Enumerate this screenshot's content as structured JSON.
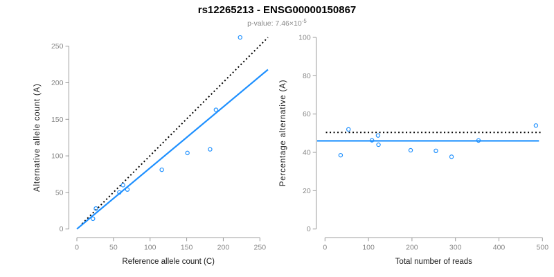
{
  "header": {
    "title": "rs12265213 - ENSG00000150867",
    "pvalue_label": "p-value: 7.46×10",
    "pvalue_exponent": "-5"
  },
  "colors": {
    "point_blue": "#1E90FF",
    "line_blue": "#1E90FF",
    "line_black": "#000000",
    "axis_line": "#9a9a9a",
    "tick_text": "#878787",
    "axis_title_text": "#1a1a1a",
    "title_text": "#000000",
    "subtitle_text": "#8a8a8a",
    "background": "#ffffff"
  },
  "chart_data": [
    {
      "panel": "allele-counts-scatter",
      "type": "scatter",
      "xlabel": "Reference allele count (C)",
      "ylabel": "Alternative allele count (A)",
      "xlim": [
        0,
        250
      ],
      "ylim": [
        0,
        250
      ],
      "xticks": [
        0,
        50,
        100,
        150,
        200,
        250
      ],
      "yticks": [
        0,
        50,
        100,
        150,
        200,
        250
      ],
      "grid": false,
      "legend": "none",
      "marker": "open-circle",
      "points": [
        [
          22,
          14
        ],
        [
          26,
          28
        ],
        [
          58,
          50
        ],
        [
          63,
          60
        ],
        [
          69,
          54
        ],
        [
          116,
          81
        ],
        [
          151,
          104
        ],
        [
          182,
          109
        ],
        [
          190,
          163
        ],
        [
          223,
          262
        ]
      ],
      "lines": [
        {
          "name": "expected-50-50-line",
          "style": "dotted",
          "color": "#000000",
          "from": [
            7,
            7
          ],
          "to": [
            261,
            262
          ]
        },
        {
          "name": "fitted-ratio-line",
          "style": "solid",
          "color": "#1E90FF",
          "from": [
            0,
            0
          ],
          "to": [
            261,
            218
          ]
        }
      ]
    },
    {
      "panel": "percentage-vs-coverage-scatter",
      "type": "scatter",
      "xlabel": "Total number of reads",
      "ylabel": "Percentage alternative (A)",
      "xlim": [
        0,
        500
      ],
      "ylim": [
        0,
        100
      ],
      "xticks": [
        0,
        100,
        200,
        300,
        400,
        500
      ],
      "yticks": [
        0,
        20,
        40,
        60,
        80,
        100
      ],
      "grid": false,
      "legend": "none",
      "marker": "open-circle",
      "points": [
        [
          36,
          38.5
        ],
        [
          54,
          52
        ],
        [
          108,
          46.3
        ],
        [
          122,
          48.8
        ],
        [
          123,
          44
        ],
        [
          197,
          41.1
        ],
        [
          255,
          40.8
        ],
        [
          291,
          37.7
        ],
        [
          353,
          46.2
        ],
        [
          485,
          54
        ]
      ],
      "lines": [
        {
          "name": "expected-percentage-line",
          "style": "dotted",
          "color": "#000000",
          "from": [
            2,
            50.4
          ],
          "to": [
            497,
            50.4
          ]
        },
        {
          "name": "observed-mean-percentage-line",
          "style": "solid",
          "color": "#1E90FF",
          "from": [
            -18,
            46
          ],
          "to": [
            492,
            46
          ]
        }
      ]
    }
  ]
}
